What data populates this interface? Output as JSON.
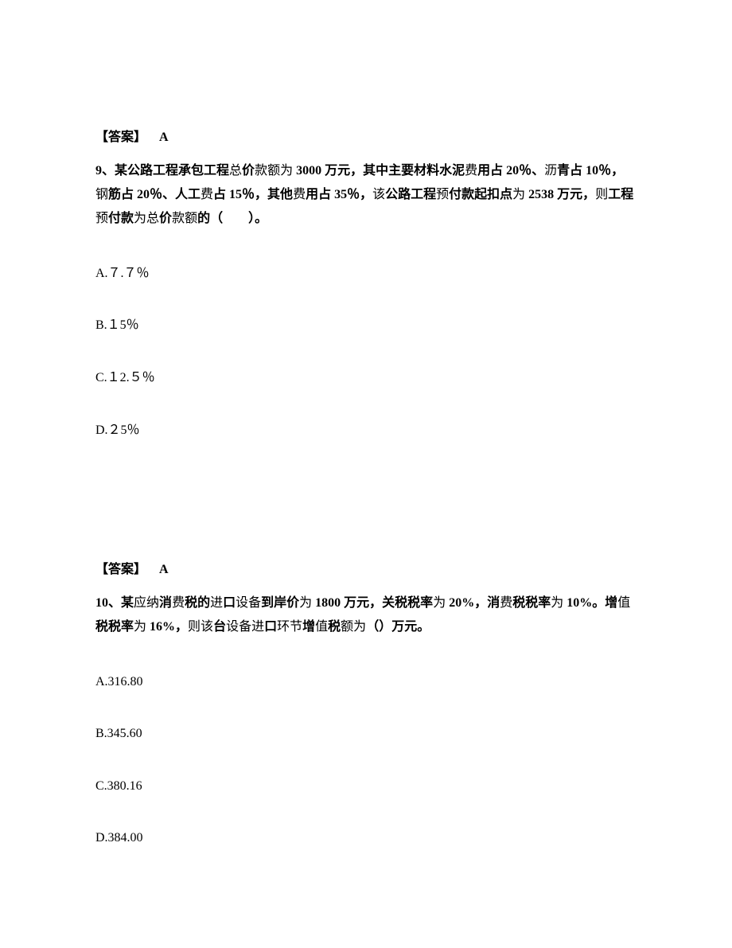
{
  "q8": {
    "answer_label": "【答案】",
    "answer_value": "A"
  },
  "q9": {
    "number": "9、",
    "stem_part1": "某公路工程承包工程",
    "stem_part2": "总",
    "stem_part3": "价",
    "stem_part4": "款",
    "stem_part5": "额为",
    "stem_part6": " 3000 ",
    "stem_part7": "万元，其中主要材料水泥",
    "stem_part8": "费",
    "stem_part9": "用占 20％、",
    "stem_part10": "沥",
    "stem_part11": "青占 10％，",
    "stem_part12": "钢",
    "stem_part13": "筋占 20％、人工",
    "stem_part14": "费",
    "stem_part15": "占 15％，其他",
    "stem_part16": "费",
    "stem_part17": "用占 35％，",
    "stem_part18": "该",
    "stem_part19": "公路工程",
    "stem_part20": "预",
    "stem_part21": "付款起扣点",
    "stem_part22": "为",
    "stem_part23": " 2538 ",
    "stem_part24": "万元，",
    "stem_part25": "则",
    "stem_part26": "工程",
    "stem_part27": "预",
    "stem_part28": "付款",
    "stem_part29": "为总",
    "stem_part30": "价",
    "stem_part31": "款",
    "stem_part32": "额",
    "stem_part33": "的（　　）。",
    "opt_a": "A.７.７％",
    "opt_b": "B.１5％",
    "opt_c": "C.１2.５％",
    "opt_d": "D.２5％",
    "answer_label": "【答案】",
    "answer_value": "A"
  },
  "q10": {
    "number": "10、",
    "stem_part1": "某",
    "stem_part2": "应纳",
    "stem_part3": "消",
    "stem_part4": "费",
    "stem_part5": "税的",
    "stem_part6": "进",
    "stem_part7": "口",
    "stem_part8": "设备",
    "stem_part9": "到岸价",
    "stem_part10": "为",
    "stem_part11": " 1800 ",
    "stem_part12": "万元，关税税率",
    "stem_part13": "为",
    "stem_part14": " 20%，消",
    "stem_part15": "费",
    "stem_part16": "税税率",
    "stem_part17": "为",
    "stem_part18": " 10%。增",
    "stem_part19": "值",
    "stem_part20": "税税率",
    "stem_part21": "为",
    "stem_part22": " 16%，",
    "stem_part23": "则该",
    "stem_part24": "台",
    "stem_part25": "设备进",
    "stem_part26": "口",
    "stem_part27": "环节",
    "stem_part28": "增",
    "stem_part29": "值",
    "stem_part30": "税",
    "stem_part31": "额为",
    "stem_part32": "（）万元。",
    "opt_a": "A.316.80",
    "opt_b": "B.345.60",
    "opt_c": "C.380.16",
    "opt_d": "D.384.00"
  },
  "colors": {
    "text": "#000000",
    "background": "#ffffff"
  },
  "typography": {
    "base_fontsize": 16,
    "line_height": 1.6,
    "font_family": "SimSun"
  }
}
